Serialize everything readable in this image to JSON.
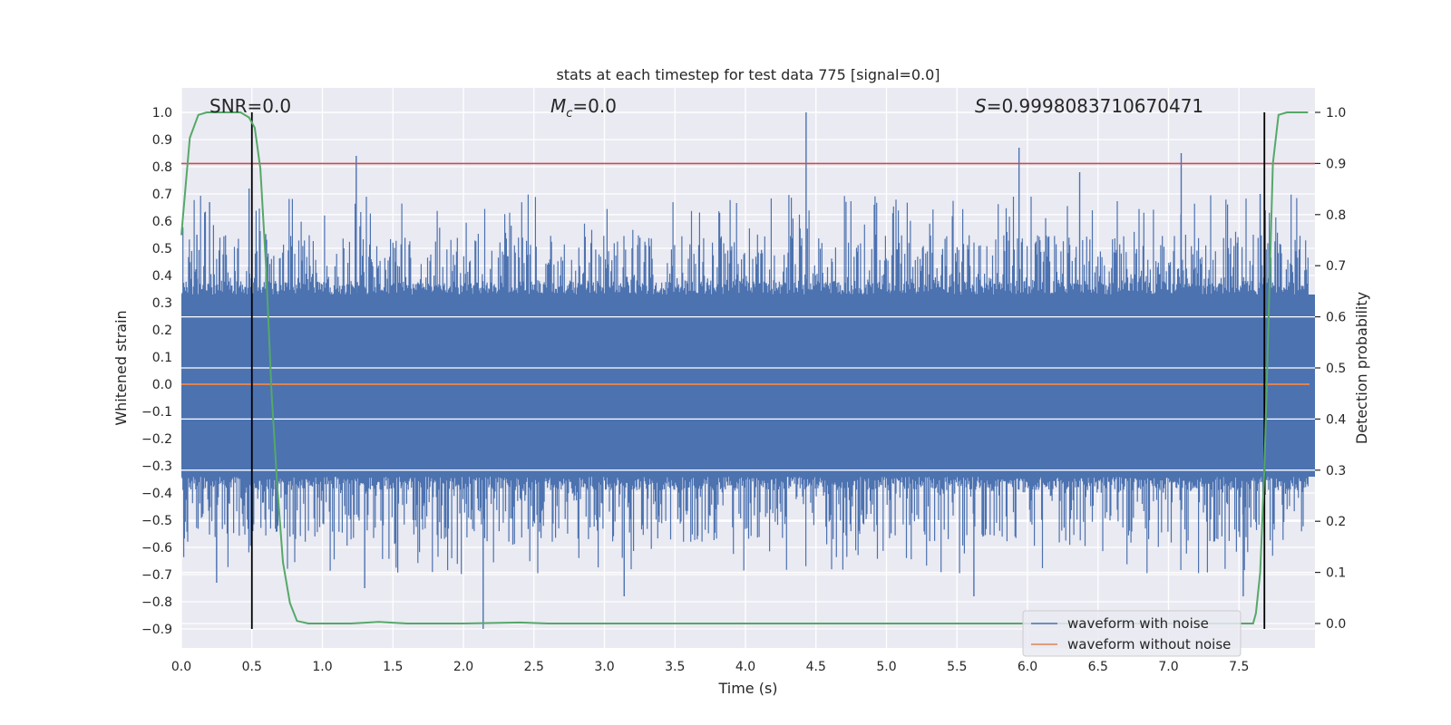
{
  "chart_data": {
    "type": "line",
    "title": "stats at each timestep for test data 775 [signal=0.0]",
    "xlabel": "Time (s)",
    "ylabel": "Whitened strain",
    "y2label": "Detection probability",
    "xlim": [
      0.0,
      8.0
    ],
    "ylim": [
      -0.9,
      1.0
    ],
    "y2lim": [
      0.0,
      1.0
    ],
    "x_ticks": [
      0.0,
      0.5,
      1.0,
      1.5,
      2.0,
      2.5,
      3.0,
      3.5,
      4.0,
      4.5,
      5.0,
      5.5,
      6.0,
      6.5,
      7.0,
      7.5
    ],
    "x_tick_labels": [
      "0.0",
      "0.5",
      "1.0",
      "1.5",
      "2.0",
      "2.5",
      "3.0",
      "3.5",
      "4.0",
      "4.5",
      "5.0",
      "5.5",
      "6.0",
      "6.5",
      "7.0",
      "7.5"
    ],
    "y_ticks": [
      -0.9,
      -0.8,
      -0.7,
      -0.6,
      -0.5,
      -0.4,
      -0.3,
      -0.2,
      -0.1,
      0.0,
      0.1,
      0.2,
      0.3,
      0.4,
      0.5,
      0.6,
      0.7,
      0.8,
      0.9,
      1.0
    ],
    "y_tick_labels": [
      "−0.9",
      "−0.8",
      "−0.7",
      "−0.6",
      "−0.5",
      "−0.4",
      "−0.3",
      "−0.2",
      "−0.1",
      "0.0",
      "0.1",
      "0.2",
      "0.3",
      "0.4",
      "0.5",
      "0.6",
      "0.7",
      "0.8",
      "0.9",
      "1.0"
    ],
    "y2_ticks": [
      0.0,
      0.1,
      0.2,
      0.3,
      0.4,
      0.5,
      0.6,
      0.7,
      0.8,
      0.9,
      1.0
    ],
    "y2_tick_labels": [
      "0.0",
      "0.1",
      "0.2",
      "0.3",
      "0.4",
      "0.5",
      "0.6",
      "0.7",
      "0.8",
      "0.9",
      "1.0"
    ],
    "annotations": {
      "snr": "SNR=0.0",
      "mc_symbol": "M",
      "mc_sub": "c",
      "mc_value": "=0.0",
      "s_symbol": "S",
      "s_value": "=0.9998083710670471"
    },
    "series": [
      {
        "name": "waveform with noise",
        "color": "#4c72b0",
        "axis": "left",
        "kind": "dense_noise",
        "band_top": 0.33,
        "band_bottom": -0.34,
        "spike_top": 0.55,
        "spike_bottom": -0.58,
        "peaks": [
          {
            "x": 0.11,
            "y": 0.55
          },
          {
            "x": 0.2,
            "y": 0.67
          },
          {
            "x": 0.25,
            "y": -0.73
          },
          {
            "x": 0.48,
            "y": 0.72
          },
          {
            "x": 1.24,
            "y": 0.84
          },
          {
            "x": 1.3,
            "y": -0.75
          },
          {
            "x": 2.14,
            "y": -0.9
          },
          {
            "x": 3.14,
            "y": -0.78
          },
          {
            "x": 4.43,
            "y": 1.0
          },
          {
            "x": 5.62,
            "y": -0.78
          },
          {
            "x": 5.94,
            "y": 0.87
          },
          {
            "x": 6.37,
            "y": 0.78
          },
          {
            "x": 7.09,
            "y": 0.85
          },
          {
            "x": 7.53,
            "y": -0.78
          },
          {
            "x": 7.65,
            "y": 0.7
          }
        ]
      },
      {
        "name": "waveform without noise",
        "color": "#dd8452",
        "axis": "left",
        "x": [
          0.0,
          8.0
        ],
        "y": [
          0.0,
          0.0
        ]
      },
      {
        "name": "detection probability",
        "color": "#55a868",
        "axis": "right",
        "x": [
          0.0,
          0.06,
          0.12,
          0.18,
          0.24,
          0.3,
          0.36,
          0.42,
          0.48,
          0.52,
          0.56,
          0.6,
          0.64,
          0.68,
          0.72,
          0.77,
          0.82,
          0.9,
          1.0,
          1.2,
          1.4,
          1.6,
          2.0,
          2.4,
          2.6,
          3.0,
          4.0,
          5.0,
          6.0,
          7.0,
          7.5,
          7.6,
          7.62,
          7.65,
          7.68,
          7.71,
          7.74,
          7.78,
          7.84,
          7.92,
          7.99
        ],
        "y": [
          0.76,
          0.95,
          0.995,
          1.0,
          1.0,
          1.0,
          1.0,
          1.0,
          0.99,
          0.97,
          0.89,
          0.7,
          0.45,
          0.27,
          0.12,
          0.04,
          0.005,
          0.0,
          0.0,
          0.0,
          0.003,
          0.0,
          0.0,
          0.002,
          0.0,
          0.0,
          0.0,
          0.0,
          0.0,
          0.0,
          0.0,
          0.0,
          0.02,
          0.1,
          0.3,
          0.6,
          0.9,
          0.995,
          1.0,
          1.0,
          1.0
        ]
      }
    ],
    "hlines": [
      {
        "axis": "right",
        "y": 0.9,
        "color": "#c44e52"
      }
    ],
    "vlines": [
      {
        "x": 0.5,
        "color": "#000000",
        "y_from": -0.9,
        "y_to": 1.0
      },
      {
        "x": 7.68,
        "color": "#000000",
        "y_from": -0.9,
        "y_to": 1.0
      }
    ],
    "legend": {
      "location": "lower-right",
      "entries": [
        {
          "label": "waveform with noise",
          "color": "#4c72b0"
        },
        {
          "label": "waveform without noise",
          "color": "#dd8452"
        }
      ]
    },
    "grid": true
  },
  "colors": {
    "plot_background": "#eaeaf2",
    "grid": "#ffffff",
    "text": "#262626"
  }
}
